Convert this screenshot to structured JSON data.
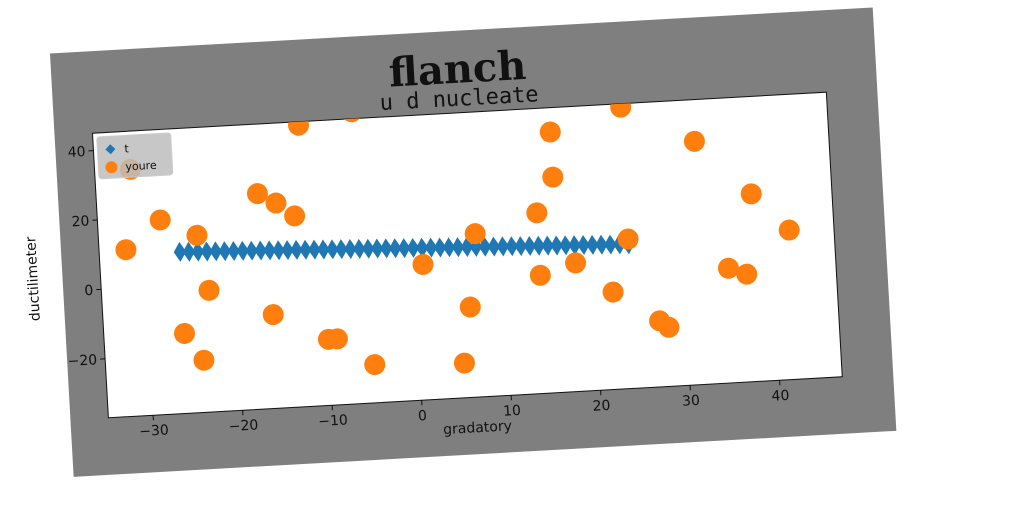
{
  "figure": {
    "suptitle": "flanch",
    "title": "u d nucleate",
    "xlabel": "gradatory",
    "ylabel": "ductilimeter"
  },
  "colors": {
    "figure_bg": "#7f7f7f",
    "axes_bg": "#ffffff",
    "series_t": "#1f77b4",
    "series_youre": "#ff7f0e"
  },
  "chart_data": {
    "type": "scatter",
    "title": "u d nucleate",
    "xlabel": "gradatory",
    "ylabel": "ductilimeter",
    "xlim": [
      -35,
      47
    ],
    "ylim": [
      -37,
      45
    ],
    "xticks": [
      -30,
      -20,
      -10,
      0,
      10,
      20,
      30,
      40
    ],
    "yticks": [
      -20,
      0,
      20,
      40
    ],
    "grid": false,
    "legend": "upper-left",
    "series": [
      {
        "name": "t",
        "marker": "diamond",
        "color": "#1f77b4",
        "x": [
          -26,
          -25,
          -24,
          -23,
          -22,
          -21,
          -20,
          -19,
          -18,
          -17,
          -16,
          -15,
          -14,
          -13,
          -12,
          -11,
          -10,
          -9,
          -8,
          -7,
          -6,
          -5,
          -4,
          -3,
          -2,
          -1,
          0,
          1,
          2,
          3,
          4,
          5,
          6,
          7,
          8,
          9,
          10,
          11,
          12,
          13,
          14,
          15,
          16,
          17,
          18,
          19,
          20,
          21,
          22,
          23,
          24
        ],
        "y": [
          9.5,
          9.4,
          9.3,
          9.2,
          9.1,
          9.0,
          8.9,
          8.8,
          8.7,
          8.6,
          8.5,
          8.4,
          8.3,
          8.2,
          8.1,
          8.0,
          7.9,
          7.8,
          7.7,
          7.6,
          7.5,
          7.4,
          7.3,
          7.2,
          7.1,
          7.0,
          6.9,
          6.8,
          6.7,
          6.6,
          6.5,
          6.4,
          6.3,
          6.2,
          6.1,
          6.0,
          5.9,
          5.8,
          5.7,
          5.6,
          5.5,
          5.4,
          5.3,
          5.2,
          5.1,
          5.0,
          4.9,
          4.8,
          4.7,
          4.6,
          4.5
        ]
      },
      {
        "name": "youre",
        "marker": "circle",
        "color": "#ff7f0e",
        "x": [
          -32,
          -31,
          -28,
          -26,
          -24,
          -24,
          -23,
          -17,
          -16,
          -15,
          -13,
          -12,
          -10,
          -9,
          -6,
          -5,
          1,
          5,
          6,
          7,
          14,
          14,
          16,
          16,
          18,
          22,
          24,
          24,
          27,
          28,
          32,
          35,
          37,
          38,
          42
        ],
        "y": [
          11,
          34,
          19,
          -14,
          14,
          -22,
          -2,
          25,
          -10,
          22,
          18,
          44,
          -18,
          -18,
          47,
          -26,
          2,
          -27,
          -11,
          10,
          15,
          -3,
          38,
          25,
          0,
          -9,
          44,
          6,
          -18,
          -20,
          33,
          -4,
          -6,
          17,
          6
        ]
      }
    ]
  }
}
